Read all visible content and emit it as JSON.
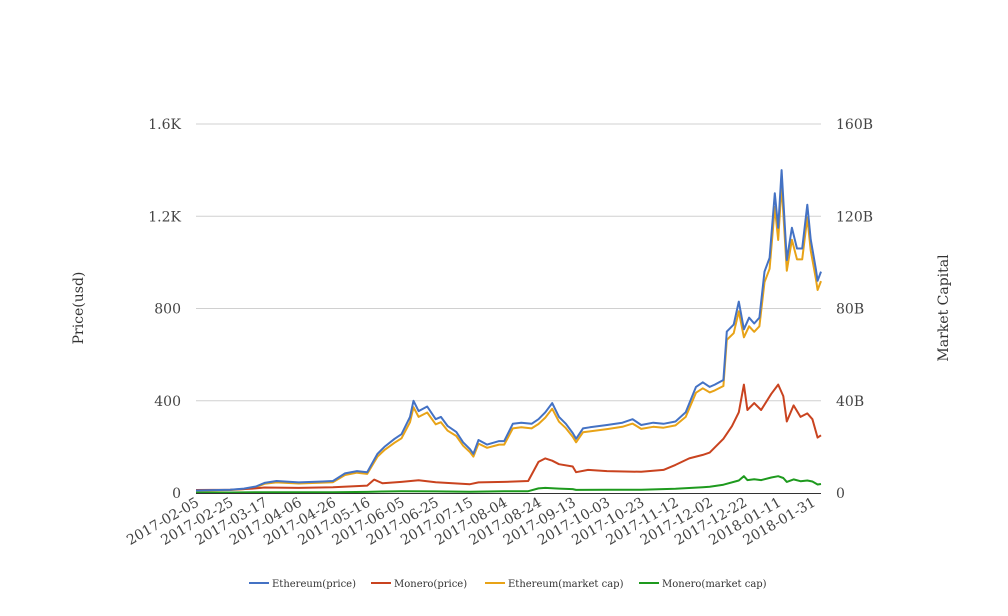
{
  "chart_data": {
    "type": "line",
    "xlabel": "",
    "ylabel": "Price(usd)",
    "y2label": "Market Capital",
    "ylim": [
      0,
      1600
    ],
    "y2lim": [
      0,
      160000000000
    ],
    "yticks": [
      "0",
      "400",
      "800",
      "1.2K",
      "1.6K"
    ],
    "yticks_values": [
      0,
      400,
      800,
      1200,
      1600
    ],
    "y2ticks": [
      "0",
      "40B",
      "80B",
      "120B",
      "160B"
    ],
    "x_range": [
      "2017-02-05",
      "2018-02-05"
    ],
    "xticks": [
      "2017-02-05",
      "2017-02-25",
      "2017-03-17",
      "2017-04-06",
      "2017-04-26",
      "2017-05-16",
      "2017-06-05",
      "2017-06-25",
      "2017-07-15",
      "2017-08-04",
      "2017-08-24",
      "2017-09-13",
      "2017-10-03",
      "2017-10-23",
      "2017-11-12",
      "2017-12-02",
      "2017-12-22",
      "2018-01-11",
      "2018-01-31"
    ],
    "grid": true,
    "legend_position": "bottom",
    "series": [
      {
        "name": "Ethereum(price)",
        "axis": "left",
        "color": "#4472c4",
        "points": [
          [
            "2017-02-05",
            11
          ],
          [
            "2017-02-25",
            14
          ],
          [
            "2017-03-05",
            19
          ],
          [
            "2017-03-12",
            28
          ],
          [
            "2017-03-17",
            44
          ],
          [
            "2017-03-24",
            52
          ],
          [
            "2017-04-06",
            46
          ],
          [
            "2017-04-20",
            50
          ],
          [
            "2017-04-26",
            52
          ],
          [
            "2017-05-03",
            85
          ],
          [
            "2017-05-10",
            95
          ],
          [
            "2017-05-16",
            90
          ],
          [
            "2017-05-22",
            170
          ],
          [
            "2017-05-26",
            200
          ],
          [
            "2017-06-01",
            235
          ],
          [
            "2017-06-05",
            255
          ],
          [
            "2017-06-10",
            330
          ],
          [
            "2017-06-12",
            400
          ],
          [
            "2017-06-15",
            355
          ],
          [
            "2017-06-20",
            375
          ],
          [
            "2017-06-25",
            320
          ],
          [
            "2017-06-28",
            330
          ],
          [
            "2017-07-02",
            290
          ],
          [
            "2017-07-07",
            265
          ],
          [
            "2017-07-11",
            220
          ],
          [
            "2017-07-15",
            190
          ],
          [
            "2017-07-17",
            170
          ],
          [
            "2017-07-20",
            230
          ],
          [
            "2017-07-25",
            210
          ],
          [
            "2017-08-01",
            225
          ],
          [
            "2017-08-04",
            225
          ],
          [
            "2017-08-09",
            300
          ],
          [
            "2017-08-14",
            305
          ],
          [
            "2017-08-20",
            300
          ],
          [
            "2017-08-24",
            320
          ],
          [
            "2017-08-28",
            350
          ],
          [
            "2017-09-01",
            390
          ],
          [
            "2017-09-05",
            330
          ],
          [
            "2017-09-09",
            300
          ],
          [
            "2017-09-13",
            260
          ],
          [
            "2017-09-15",
            235
          ],
          [
            "2017-09-19",
            280
          ],
          [
            "2017-09-23",
            285
          ],
          [
            "2017-10-03",
            295
          ],
          [
            "2017-10-12",
            305
          ],
          [
            "2017-10-18",
            320
          ],
          [
            "2017-10-23",
            295
          ],
          [
            "2017-10-30",
            305
          ],
          [
            "2017-11-05",
            300
          ],
          [
            "2017-11-12",
            310
          ],
          [
            "2017-11-18",
            350
          ],
          [
            "2017-11-24",
            460
          ],
          [
            "2017-11-28",
            480
          ],
          [
            "2017-12-02",
            460
          ],
          [
            "2017-12-05",
            470
          ],
          [
            "2017-12-10",
            490
          ],
          [
            "2017-12-12",
            700
          ],
          [
            "2017-12-16",
            730
          ],
          [
            "2017-12-19",
            830
          ],
          [
            "2017-12-22",
            710
          ],
          [
            "2017-12-25",
            760
          ],
          [
            "2017-12-28",
            735
          ],
          [
            "2017-12-31",
            760
          ],
          [
            "2018-01-03",
            960
          ],
          [
            "2018-01-06",
            1020
          ],
          [
            "2018-01-09",
            1300
          ],
          [
            "2018-01-11",
            1150
          ],
          [
            "2018-01-13",
            1400
          ],
          [
            "2018-01-16",
            1010
          ],
          [
            "2018-01-19",
            1150
          ],
          [
            "2018-01-22",
            1060
          ],
          [
            "2018-01-25",
            1060
          ],
          [
            "2018-01-28",
            1250
          ],
          [
            "2018-01-30",
            1100
          ],
          [
            "2018-02-02",
            970
          ],
          [
            "2018-02-03",
            920
          ],
          [
            "2018-02-05",
            960
          ]
        ]
      },
      {
        "name": "Monero(price)",
        "axis": "left",
        "color": "#c9431f",
        "points": [
          [
            "2017-02-05",
            13
          ],
          [
            "2017-02-25",
            14
          ],
          [
            "2017-03-10",
            19
          ],
          [
            "2017-03-17",
            24
          ],
          [
            "2017-04-06",
            22
          ],
          [
            "2017-04-26",
            25
          ],
          [
            "2017-05-16",
            32
          ],
          [
            "2017-05-20",
            58
          ],
          [
            "2017-05-25",
            42
          ],
          [
            "2017-06-05",
            48
          ],
          [
            "2017-06-15",
            55
          ],
          [
            "2017-06-25",
            47
          ],
          [
            "2017-07-15",
            38
          ],
          [
            "2017-07-20",
            46
          ],
          [
            "2017-08-04",
            48
          ],
          [
            "2017-08-18",
            52
          ],
          [
            "2017-08-24",
            135
          ],
          [
            "2017-08-28",
            150
          ],
          [
            "2017-09-01",
            140
          ],
          [
            "2017-09-05",
            125
          ],
          [
            "2017-09-13",
            115
          ],
          [
            "2017-09-15",
            90
          ],
          [
            "2017-09-22",
            100
          ],
          [
            "2017-10-03",
            95
          ],
          [
            "2017-10-23",
            92
          ],
          [
            "2017-11-05",
            100
          ],
          [
            "2017-11-12",
            122
          ],
          [
            "2017-11-20",
            150
          ],
          [
            "2017-11-28",
            165
          ],
          [
            "2017-12-02",
            175
          ],
          [
            "2017-12-10",
            235
          ],
          [
            "2017-12-15",
            290
          ],
          [
            "2017-12-19",
            350
          ],
          [
            "2017-12-22",
            470
          ],
          [
            "2017-12-24",
            360
          ],
          [
            "2017-12-28",
            390
          ],
          [
            "2018-01-01",
            360
          ],
          [
            "2018-01-07",
            430
          ],
          [
            "2018-01-11",
            470
          ],
          [
            "2018-01-14",
            420
          ],
          [
            "2018-01-16",
            310
          ],
          [
            "2018-01-20",
            380
          ],
          [
            "2018-01-24",
            330
          ],
          [
            "2018-01-28",
            345
          ],
          [
            "2018-01-31",
            320
          ],
          [
            "2018-02-03",
            240
          ],
          [
            "2018-02-05",
            250
          ]
        ]
      },
      {
        "name": "Ethereum(market cap)",
        "axis": "right",
        "color": "#e8a317",
        "points": [
          [
            "2017-02-05",
            1000000000
          ],
          [
            "2017-02-25",
            1300000000
          ],
          [
            "2017-03-05",
            1700000000
          ],
          [
            "2017-03-12",
            2500000000
          ],
          [
            "2017-03-17",
            4000000000
          ],
          [
            "2017-03-24",
            4600000000
          ],
          [
            "2017-04-06",
            4100000000
          ],
          [
            "2017-04-20",
            4500000000
          ],
          [
            "2017-04-26",
            4700000000
          ],
          [
            "2017-05-03",
            7800000000
          ],
          [
            "2017-05-10",
            8800000000
          ],
          [
            "2017-05-16",
            8300000000
          ],
          [
            "2017-05-22",
            15800000000
          ],
          [
            "2017-05-26",
            18600000000
          ],
          [
            "2017-06-01",
            21800000000
          ],
          [
            "2017-06-05",
            23700000000
          ],
          [
            "2017-06-10",
            30700000000
          ],
          [
            "2017-06-12",
            37200000000
          ],
          [
            "2017-06-15",
            33000000000
          ],
          [
            "2017-06-20",
            34900000000
          ],
          [
            "2017-06-25",
            29800000000
          ],
          [
            "2017-06-28",
            30700000000
          ],
          [
            "2017-07-02",
            27000000000
          ],
          [
            "2017-07-07",
            24700000000
          ],
          [
            "2017-07-11",
            20500000000
          ],
          [
            "2017-07-15",
            17700000000
          ],
          [
            "2017-07-17",
            15800000000
          ],
          [
            "2017-07-20",
            21400000000
          ],
          [
            "2017-07-25",
            19600000000
          ],
          [
            "2017-08-01",
            21000000000
          ],
          [
            "2017-08-04",
            21000000000
          ],
          [
            "2017-08-09",
            28000000000
          ],
          [
            "2017-08-14",
            28500000000
          ],
          [
            "2017-08-20",
            28000000000
          ],
          [
            "2017-08-24",
            29900000000
          ],
          [
            "2017-08-28",
            32700000000
          ],
          [
            "2017-09-01",
            36500000000
          ],
          [
            "2017-09-05",
            30900000000
          ],
          [
            "2017-09-09",
            28100000000
          ],
          [
            "2017-09-13",
            24400000000
          ],
          [
            "2017-09-15",
            22000000000
          ],
          [
            "2017-09-19",
            26300000000
          ],
          [
            "2017-09-23",
            26700000000
          ],
          [
            "2017-10-03",
            27700000000
          ],
          [
            "2017-10-12",
            28700000000
          ],
          [
            "2017-10-18",
            30100000000
          ],
          [
            "2017-10-23",
            27800000000
          ],
          [
            "2017-10-30",
            28700000000
          ],
          [
            "2017-11-05",
            28300000000
          ],
          [
            "2017-11-12",
            29300000000
          ],
          [
            "2017-11-18",
            33000000000
          ],
          [
            "2017-11-24",
            43500000000
          ],
          [
            "2017-11-28",
            45400000000
          ],
          [
            "2017-12-02",
            43600000000
          ],
          [
            "2017-12-05",
            44500000000
          ],
          [
            "2017-12-10",
            46400000000
          ],
          [
            "2017-12-12",
            66400000000
          ],
          [
            "2017-12-16",
            69300000000
          ],
          [
            "2017-12-19",
            78800000000
          ],
          [
            "2017-12-22",
            67500000000
          ],
          [
            "2017-12-25",
            72300000000
          ],
          [
            "2017-12-28",
            69900000000
          ],
          [
            "2017-12-31",
            72300000000
          ],
          [
            "2018-01-03",
            91400000000
          ],
          [
            "2018-01-06",
            97200000000
          ],
          [
            "2018-01-09",
            124000000000
          ],
          [
            "2018-01-11",
            109700000000
          ],
          [
            "2018-01-13",
            133600000000
          ],
          [
            "2018-01-16",
            96400000000
          ],
          [
            "2018-01-19",
            109800000000
          ],
          [
            "2018-01-22",
            101300000000
          ],
          [
            "2018-01-25",
            101300000000
          ],
          [
            "2018-01-28",
            119500000000
          ],
          [
            "2018-01-30",
            105200000000
          ],
          [
            "2018-02-02",
            92800000000
          ],
          [
            "2018-02-03",
            88000000000
          ],
          [
            "2018-02-05",
            91900000000
          ]
        ]
      },
      {
        "name": "Monero(market cap)",
        "axis": "right",
        "color": "#1e9a1e",
        "points": [
          [
            "2017-02-05",
            180000000
          ],
          [
            "2017-02-25",
            200000000
          ],
          [
            "2017-03-17",
            350000000
          ],
          [
            "2017-04-06",
            320000000
          ],
          [
            "2017-04-26",
            360000000
          ],
          [
            "2017-05-16",
            470000000
          ],
          [
            "2017-05-25",
            650000000
          ],
          [
            "2017-06-05",
            720000000
          ],
          [
            "2017-06-25",
            700000000
          ],
          [
            "2017-07-15",
            580000000
          ],
          [
            "2017-08-04",
            720000000
          ],
          [
            "2017-08-18",
            780000000
          ],
          [
            "2017-08-24",
            2000000000
          ],
          [
            "2017-08-28",
            2200000000
          ],
          [
            "2017-09-05",
            1900000000
          ],
          [
            "2017-09-13",
            1700000000
          ],
          [
            "2017-09-15",
            1350000000
          ],
          [
            "2017-10-03",
            1450000000
          ],
          [
            "2017-10-23",
            1400000000
          ],
          [
            "2017-11-12",
            1850000000
          ],
          [
            "2017-11-28",
            2500000000
          ],
          [
            "2017-12-02",
            2700000000
          ],
          [
            "2017-12-10",
            3600000000
          ],
          [
            "2017-12-19",
            5400000000
          ],
          [
            "2017-12-22",
            7300000000
          ],
          [
            "2017-12-24",
            5600000000
          ],
          [
            "2017-12-28",
            6000000000
          ],
          [
            "2018-01-01",
            5600000000
          ],
          [
            "2018-01-07",
            6700000000
          ],
          [
            "2018-01-11",
            7300000000
          ],
          [
            "2018-01-14",
            6500000000
          ],
          [
            "2018-01-16",
            4800000000
          ],
          [
            "2018-01-20",
            5900000000
          ],
          [
            "2018-01-24",
            5100000000
          ],
          [
            "2018-01-28",
            5400000000
          ],
          [
            "2018-01-31",
            5000000000
          ],
          [
            "2018-02-03",
            3700000000
          ],
          [
            "2018-02-05",
            3900000000
          ]
        ]
      }
    ]
  }
}
